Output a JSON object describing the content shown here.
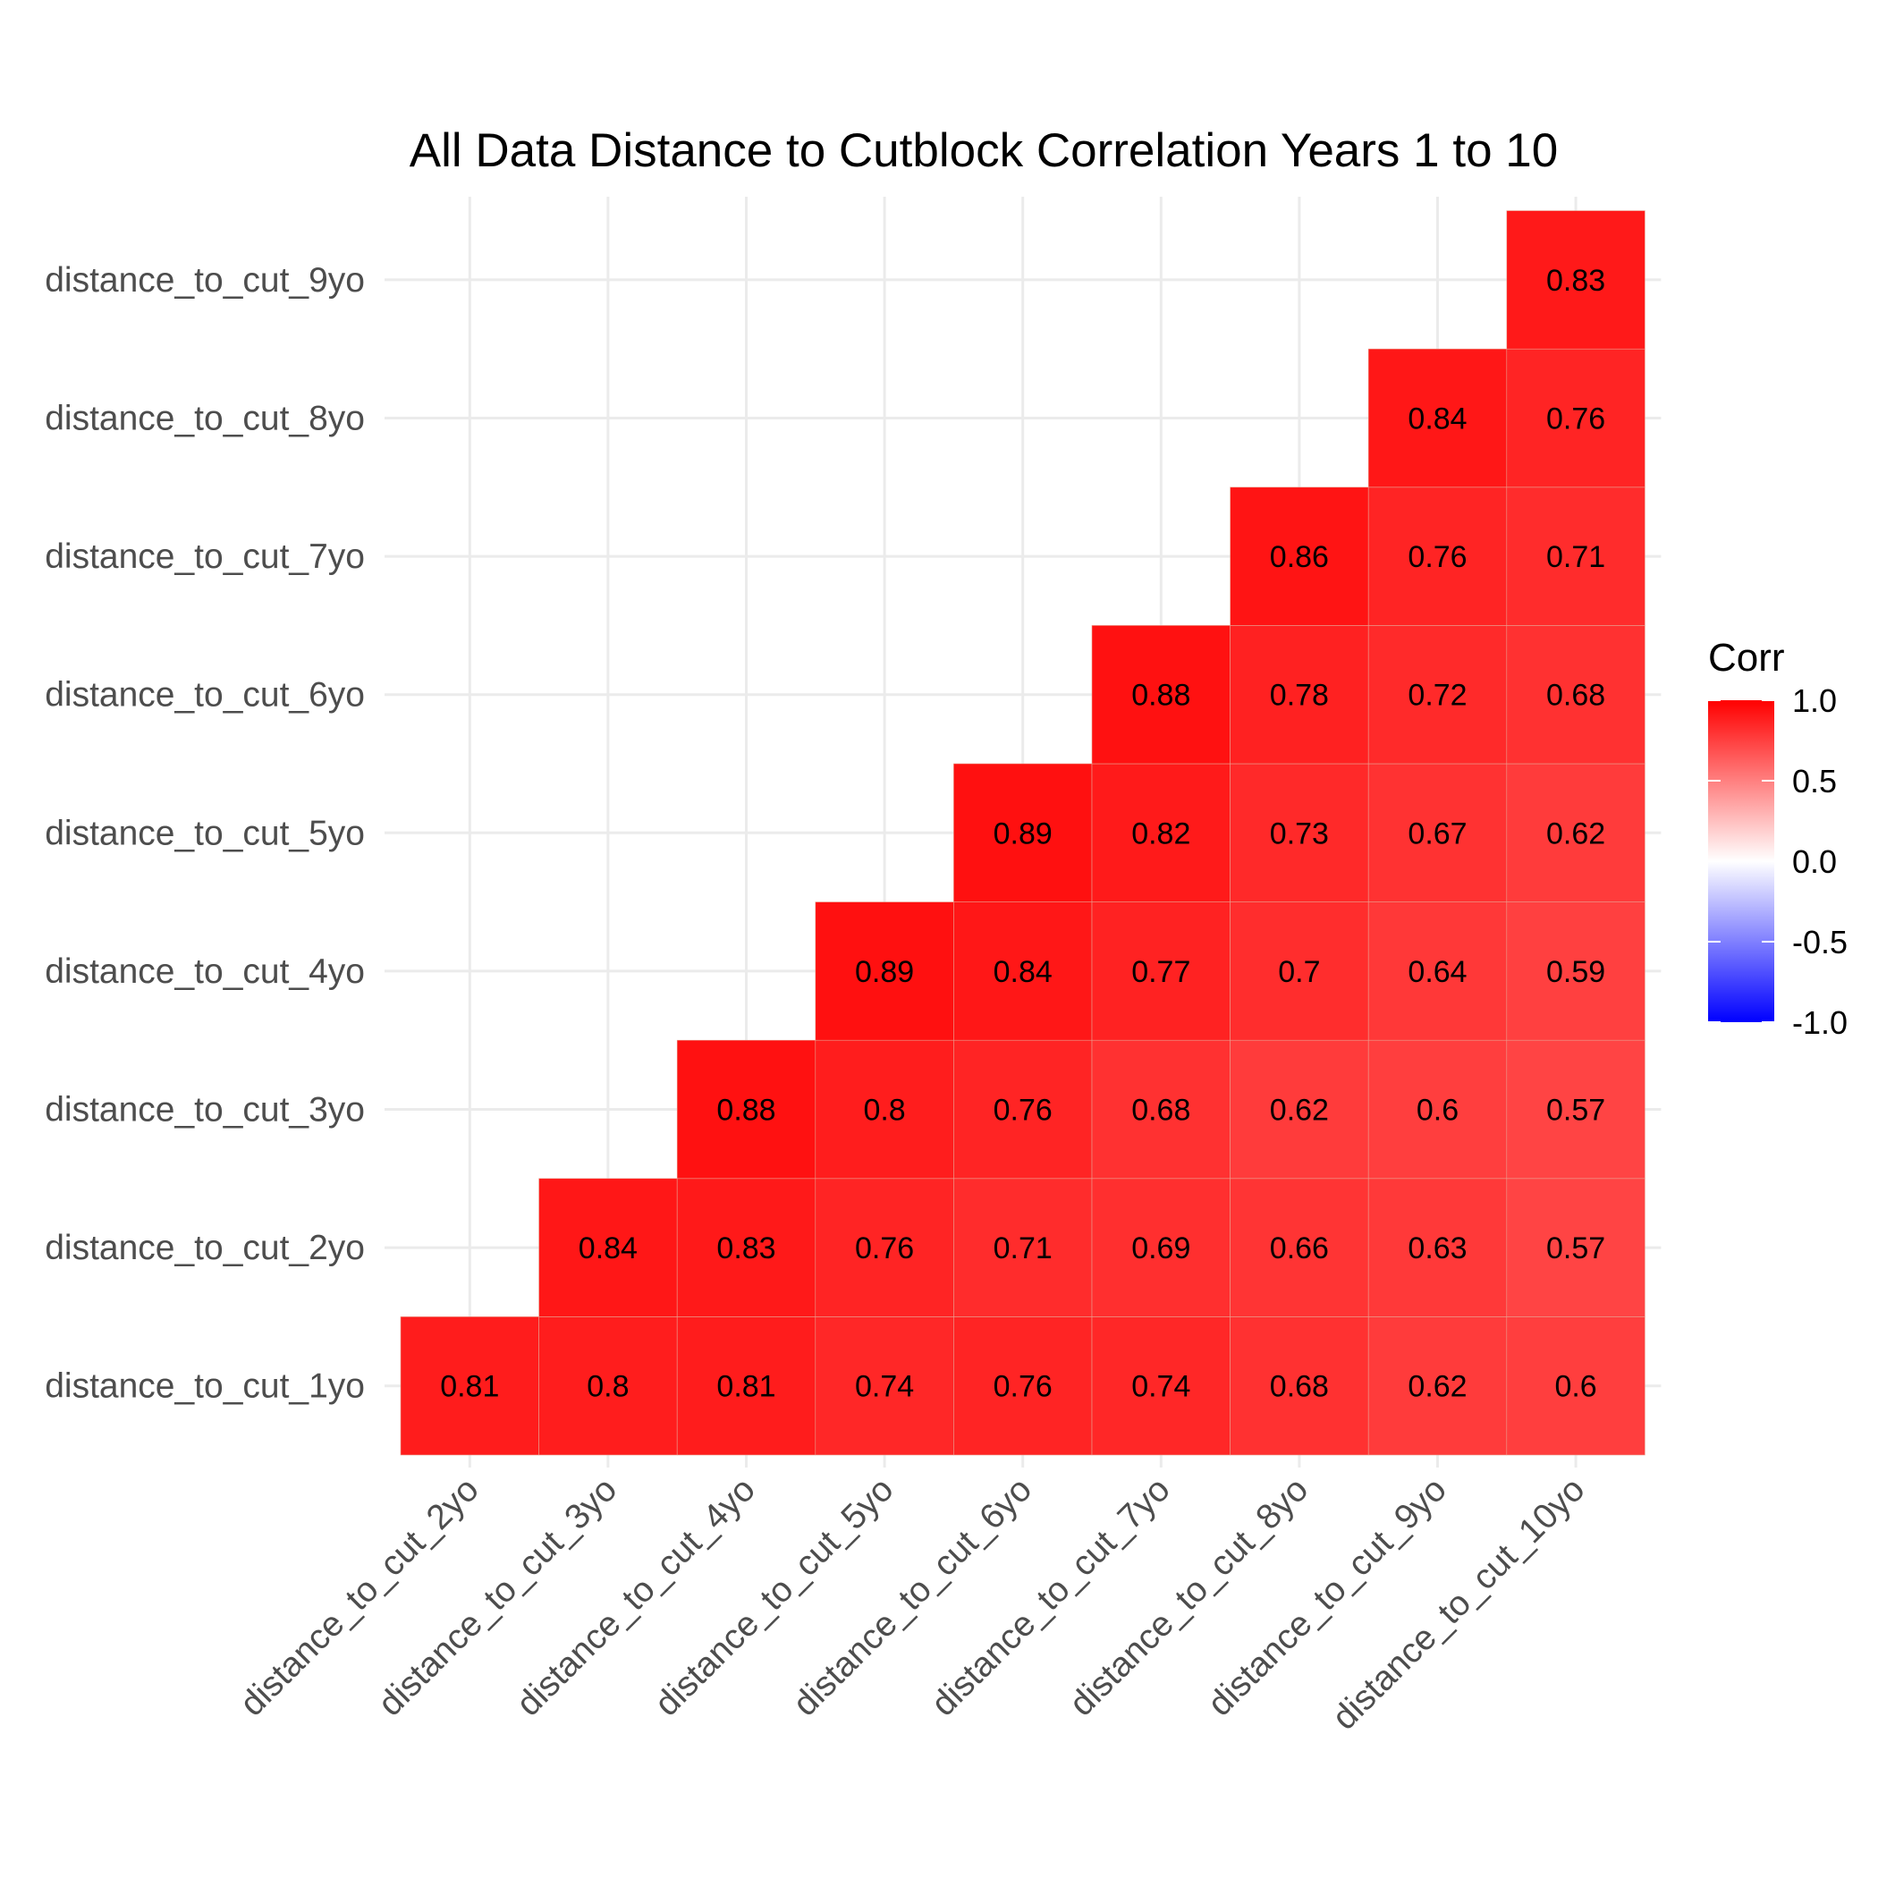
{
  "chart_data": {
    "type": "heatmap",
    "title": "All Data Distance to Cutblock Correlation Years 1 to 10",
    "x_categories": [
      "distance_to_cut_2yo",
      "distance_to_cut_3yo",
      "distance_to_cut_4yo",
      "distance_to_cut_5yo",
      "distance_to_cut_6yo",
      "distance_to_cut_7yo",
      "distance_to_cut_8yo",
      "distance_to_cut_9yo",
      "distance_to_cut_10yo"
    ],
    "y_categories": [
      "distance_to_cut_1yo",
      "distance_to_cut_2yo",
      "distance_to_cut_3yo",
      "distance_to_cut_4yo",
      "distance_to_cut_5yo",
      "distance_to_cut_6yo",
      "distance_to_cut_7yo",
      "distance_to_cut_8yo",
      "distance_to_cut_9yo"
    ],
    "matrix": [
      [
        0.81,
        0.8,
        0.81,
        0.74,
        0.76,
        0.74,
        0.68,
        0.62,
        0.6
      ],
      [
        null,
        0.84,
        0.83,
        0.76,
        0.71,
        0.69,
        0.66,
        0.63,
        0.57
      ],
      [
        null,
        null,
        0.88,
        0.8,
        0.76,
        0.68,
        0.62,
        0.6,
        0.57
      ],
      [
        null,
        null,
        null,
        0.89,
        0.84,
        0.77,
        0.7,
        0.64,
        0.59
      ],
      [
        null,
        null,
        null,
        null,
        0.89,
        0.82,
        0.73,
        0.67,
        0.62
      ],
      [
        null,
        null,
        null,
        null,
        null,
        0.88,
        0.78,
        0.72,
        0.68
      ],
      [
        null,
        null,
        null,
        null,
        null,
        null,
        0.86,
        0.76,
        0.71
      ],
      [
        null,
        null,
        null,
        null,
        null,
        null,
        null,
        0.84,
        0.76
      ],
      [
        null,
        null,
        null,
        null,
        null,
        null,
        null,
        null,
        0.83
      ]
    ],
    "legend": {
      "title": "Corr",
      "ticks": [
        "1.0",
        "0.5",
        "0.0",
        "-0.5",
        "-1.0"
      ],
      "range": [
        -1,
        1
      ],
      "colors": {
        "low": "#0000ff",
        "mid": "#ffffff",
        "high": "#ff0000"
      }
    },
    "grid": true,
    "legend_position": "right"
  }
}
